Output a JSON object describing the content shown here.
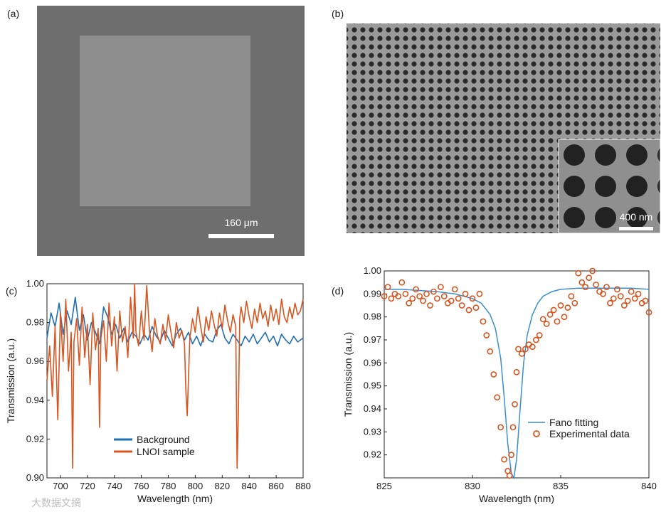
{
  "panel_labels": {
    "a": "(a)",
    "b": "(b)",
    "c": "(c)",
    "d": "(d)"
  },
  "images": {
    "a": {
      "description_name": "sem-square-pattern",
      "scale_bar_label": "160 μm"
    },
    "b": {
      "description_name": "sem-hole-array",
      "scale_bar_label": "400 nm"
    }
  },
  "watermark": "大数据文摘",
  "colors": {
    "blue": "#1f6fb2",
    "orange": "#d9541e",
    "fit": "#3a8fd0"
  },
  "chart_data": [
    {
      "id": "c",
      "type": "line",
      "title": "",
      "xlabel": "Wavelength (nm)",
      "ylabel": "Transmission (a.u.)",
      "xlim": [
        690,
        880
      ],
      "ylim": [
        0.9,
        1.0
      ],
      "xticks": [
        700,
        720,
        740,
        760,
        780,
        800,
        820,
        840,
        860,
        880
      ],
      "yticks": [
        0.9,
        0.92,
        0.94,
        0.96,
        0.98,
        1.0
      ],
      "xtick_labels": [
        "700",
        "720",
        "740",
        "760",
        "780",
        "800",
        "820",
        "840",
        "860",
        "880"
      ],
      "ytick_labels": [
        "0.90",
        "0.92",
        "0.94",
        "0.96",
        "0.98",
        "1.00"
      ],
      "legend": [
        "Background",
        "LNOI sample"
      ],
      "legend_position": "bottom-left",
      "series": [
        {
          "name": "Background",
          "color_key": "blue",
          "x": [
            690,
            693,
            696,
            699,
            702,
            705,
            708,
            711,
            714,
            717,
            720,
            723,
            726,
            729,
            732,
            735,
            738,
            741,
            744,
            747,
            750,
            753,
            756,
            759,
            762,
            765,
            768,
            771,
            774,
            777,
            780,
            783,
            786,
            789,
            792,
            795,
            798,
            801,
            804,
            807,
            810,
            813,
            816,
            819,
            822,
            825,
            828,
            831,
            834,
            837,
            840,
            843,
            846,
            849,
            852,
            855,
            858,
            861,
            864,
            867,
            870,
            873,
            876,
            880
          ],
          "values": [
            0.972,
            0.985,
            0.978,
            0.99,
            0.974,
            0.986,
            0.979,
            0.993,
            0.976,
            0.984,
            0.971,
            0.98,
            0.975,
            0.969,
            0.988,
            0.983,
            0.974,
            0.979,
            0.972,
            0.977,
            0.97,
            0.975,
            0.973,
            0.969,
            0.974,
            0.971,
            0.978,
            0.973,
            0.97,
            0.976,
            0.972,
            0.968,
            0.974,
            0.977,
            0.971,
            0.975,
            0.969,
            0.973,
            0.968,
            0.974,
            0.971,
            0.97,
            0.976,
            0.979,
            0.972,
            0.969,
            0.974,
            0.971,
            0.968,
            0.973,
            0.97,
            0.974,
            0.969,
            0.972,
            0.975,
            0.97,
            0.973,
            0.968,
            0.974,
            0.971,
            0.969,
            0.973,
            0.97,
            0.972
          ]
        },
        {
          "name": "LNOI sample",
          "color_key": "orange",
          "x": [
            690,
            692,
            694,
            696,
            698,
            700,
            702,
            704,
            706,
            708,
            709,
            710,
            712,
            714,
            716,
            718,
            720,
            722,
            724,
            726,
            728,
            729,
            730,
            732,
            734,
            736,
            738,
            740,
            742,
            744,
            746,
            748,
            750,
            752,
            754,
            755,
            756,
            758,
            760,
            762,
            764,
            766,
            768,
            770,
            772,
            774,
            776,
            778,
            780,
            782,
            784,
            786,
            788,
            790,
            792,
            793,
            794,
            796,
            798,
            800,
            802,
            804,
            806,
            808,
            810,
            812,
            814,
            816,
            818,
            820,
            822,
            824,
            826,
            828,
            830,
            831,
            832,
            833,
            834,
            836,
            838,
            840,
            842,
            844,
            846,
            848,
            850,
            852,
            854,
            856,
            858,
            860,
            862,
            864,
            866,
            868,
            870,
            872,
            874,
            876,
            878,
            880
          ],
          "values": [
            0.95,
            0.968,
            0.942,
            0.978,
            0.93,
            0.985,
            0.96,
            0.992,
            0.955,
            0.975,
            0.905,
            0.97,
            0.982,
            0.958,
            0.988,
            0.962,
            0.979,
            0.948,
            0.985,
            0.966,
            0.977,
            0.926,
            0.972,
            0.981,
            0.96,
            0.99,
            0.968,
            0.983,
            0.955,
            0.986,
            0.97,
            0.978,
            0.962,
            0.993,
            0.972,
            1.0,
            0.975,
            0.968,
            0.986,
            0.971,
            0.999,
            0.976,
            0.965,
            0.982,
            0.973,
            0.969,
            0.979,
            0.971,
            0.984,
            0.975,
            0.967,
            0.98,
            0.972,
            0.976,
            0.969,
            0.945,
            0.932,
            0.972,
            0.982,
            0.975,
            0.988,
            0.978,
            0.97,
            0.983,
            0.976,
            0.986,
            0.979,
            0.973,
            0.985,
            0.977,
            0.989,
            0.981,
            0.975,
            0.984,
            0.978,
            0.905,
            0.935,
            0.982,
            0.988,
            0.98,
            0.991,
            0.983,
            0.977,
            0.987,
            0.98,
            0.99,
            0.982,
            0.986,
            0.978,
            0.989,
            0.981,
            0.987,
            0.979,
            0.992,
            0.983,
            0.98,
            0.988,
            0.982,
            0.99,
            0.984,
            0.986,
            0.992
          ]
        }
      ]
    },
    {
      "id": "d",
      "type": "scatter",
      "title": "",
      "xlabel": "Wavelength (nm)",
      "ylabel": "Transmission (a.u.)",
      "xlim": [
        825,
        840
      ],
      "ylim": [
        0.91,
        1.0
      ],
      "xticks": [
        825,
        830,
        835,
        840
      ],
      "yticks": [
        0.92,
        0.93,
        0.94,
        0.95,
        0.96,
        0.97,
        0.98,
        0.99,
        1.0
      ],
      "xtick_labels": [
        "825",
        "830",
        "835",
        "840"
      ],
      "ytick_labels": [
        "0.92",
        "0.93",
        "0.94",
        "0.95",
        "0.96",
        "0.97",
        "0.98",
        "0.99",
        "1.00"
      ],
      "legend": [
        "Fano fitting",
        "Experimental data"
      ],
      "legend_position": "bottom-right",
      "fit": {
        "name": "Fano fitting",
        "color_key": "fit",
        "x": [
          825,
          826,
          827,
          828,
          829,
          830,
          830.5,
          831,
          831.3,
          831.6,
          831.8,
          832.0,
          832.2,
          832.35,
          832.5,
          832.7,
          832.9,
          833.1,
          833.4,
          833.7,
          834.0,
          834.5,
          835,
          836,
          837,
          838,
          839,
          840
        ],
        "values": [
          0.992,
          0.992,
          0.9915,
          0.991,
          0.99,
          0.988,
          0.986,
          0.981,
          0.975,
          0.962,
          0.945,
          0.925,
          0.912,
          0.91,
          0.918,
          0.94,
          0.96,
          0.972,
          0.981,
          0.986,
          0.989,
          0.991,
          0.992,
          0.9925,
          0.9925,
          0.9925,
          0.9925,
          0.992
        ]
      },
      "points": {
        "name": "Experimental data",
        "color_key": "orange",
        "x": [
          825.0,
          825.2,
          825.4,
          825.6,
          825.8,
          826.0,
          826.2,
          826.4,
          826.6,
          826.8,
          827.0,
          827.2,
          827.4,
          827.6,
          827.8,
          828.0,
          828.2,
          828.4,
          828.6,
          828.8,
          829.0,
          829.2,
          829.4,
          829.6,
          829.8,
          830.0,
          830.2,
          830.4,
          830.6,
          830.8,
          831.0,
          831.2,
          831.4,
          831.6,
          831.8,
          832.0,
          832.1,
          832.2,
          832.3,
          832.4,
          832.5,
          832.6,
          832.8,
          833.0,
          833.2,
          833.4,
          833.6,
          833.8,
          834.0,
          834.2,
          834.4,
          834.6,
          834.8,
          835.0,
          835.2,
          835.4,
          835.6,
          835.8,
          836.0,
          836.2,
          836.4,
          836.6,
          836.8,
          837.0,
          837.2,
          837.4,
          837.6,
          837.8,
          838.0,
          838.2,
          838.4,
          838.6,
          838.8,
          839.0,
          839.2,
          839.4,
          839.6,
          839.8,
          840.0
        ],
        "values": [
          0.989,
          0.993,
          0.988,
          0.99,
          0.989,
          0.995,
          0.99,
          0.986,
          0.988,
          0.992,
          0.989,
          0.987,
          0.99,
          0.985,
          0.991,
          0.988,
          0.993,
          0.989,
          0.986,
          0.987,
          0.992,
          0.988,
          0.985,
          0.99,
          0.983,
          0.988,
          0.984,
          0.99,
          0.978,
          0.972,
          0.965,
          0.955,
          0.945,
          0.932,
          0.918,
          0.913,
          0.911,
          0.92,
          0.932,
          0.942,
          0.956,
          0.966,
          0.964,
          0.966,
          0.968,
          0.967,
          0.97,
          0.972,
          0.979,
          0.977,
          0.981,
          0.983,
          0.978,
          0.985,
          0.98,
          0.984,
          0.989,
          0.986,
          0.999,
          0.995,
          0.993,
          0.997,
          1.0,
          0.994,
          0.991,
          0.99,
          0.993,
          0.986,
          0.988,
          0.992,
          0.989,
          0.985,
          0.987,
          0.991,
          0.988,
          0.99,
          0.986,
          0.987,
          0.982
        ]
      }
    }
  ]
}
